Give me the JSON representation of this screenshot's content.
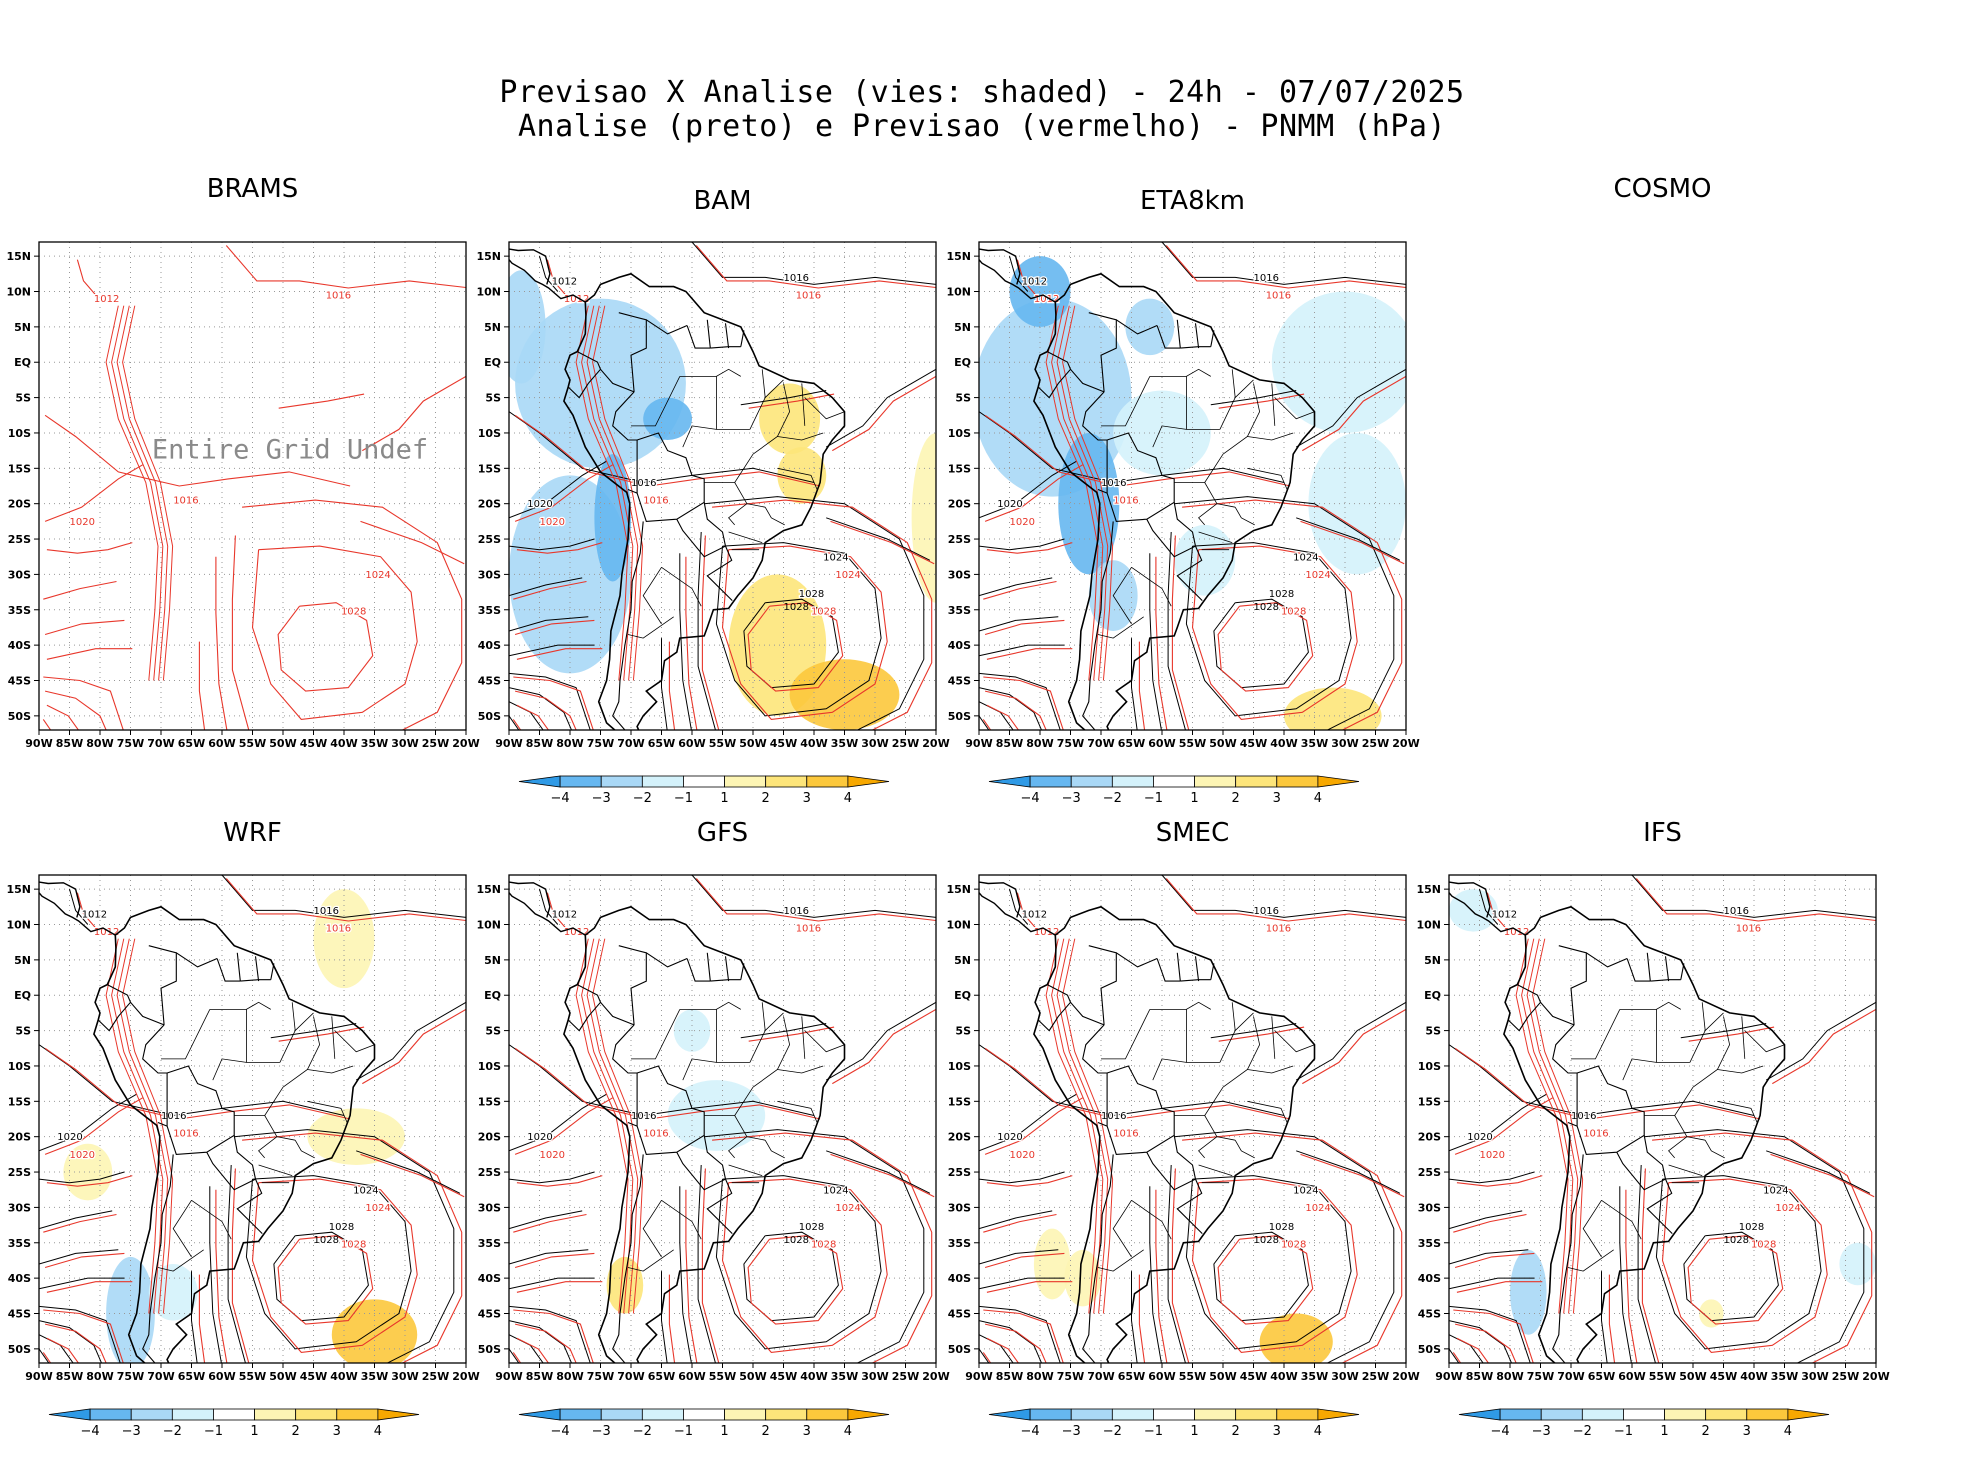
{
  "title": {
    "line1": "Previsao X Analise (vies: shaded) - 24h - 07/07/2025",
    "line2": "Analise (preto) e Previsao (vermelho) - PNMM (hPa)"
  },
  "colors": {
    "analysis_contour": "#000000",
    "forecast_contour": "#e8372b",
    "bias_neg4": "#2f9ae6",
    "bias_neg3": "#66b7f0",
    "bias_neg2": "#a9d8f6",
    "bias_neg1": "#d4f2fb",
    "bias_zero": "#ffffff",
    "bias_pos1": "#fdf5b4",
    "bias_pos2": "#fde57a",
    "bias_pos3": "#fcc83c",
    "bias_pos4": "#f7a800"
  },
  "colorbar": {
    "labels": [
      "-4",
      "-3",
      "-2",
      "-1",
      "1",
      "2",
      "3",
      "4"
    ]
  },
  "axes": {
    "x_ticks": [
      "90W",
      "85W",
      "80W",
      "75W",
      "70W",
      "65W",
      "60W",
      "55W",
      "50W",
      "45W",
      "40W",
      "35W",
      "30W",
      "25W",
      "20W"
    ],
    "y_ticks": [
      "15N",
      "10N",
      "5N",
      "EQ",
      "5S",
      "10S",
      "15S",
      "20S",
      "25S",
      "30S",
      "35S",
      "40S",
      "45S",
      "50S"
    ]
  },
  "panels": [
    {
      "id": "brams",
      "title": "BRAMS",
      "note": "Entire Grid Undef",
      "has_bias": false,
      "has_colorbar": false,
      "has_map": true
    },
    {
      "id": "bam",
      "title": "BAM",
      "has_bias": true,
      "has_colorbar": true,
      "has_map": true
    },
    {
      "id": "eta8km",
      "title": "ETA8km",
      "has_bias": true,
      "has_colorbar": true,
      "has_map": true
    },
    {
      "id": "cosmo",
      "title": "COSMO",
      "has_bias": false,
      "has_colorbar": false,
      "has_map": false
    },
    {
      "id": "wrf",
      "title": "WRF",
      "has_bias": true,
      "has_colorbar": true,
      "has_map": true
    },
    {
      "id": "gfs",
      "title": "GFS",
      "has_bias": true,
      "has_colorbar": true,
      "has_map": true
    },
    {
      "id": "smec",
      "title": "SMEC",
      "has_bias": true,
      "has_colorbar": true,
      "has_map": true
    },
    {
      "id": "ifs",
      "title": "IFS",
      "has_bias": true,
      "has_colorbar": true,
      "has_map": true
    }
  ],
  "chart_data": {
    "type": "heatmap",
    "title": "Previsao X Analise (vies: shaded) - 24h - 07/07/2025",
    "subtitle": "Analise (preto) e Previsao (vermelho) - PNMM (hPa)",
    "variable": "PNMM (hPa)",
    "lead_time": "24h",
    "date": "07/07/2025",
    "xlim": [
      -90,
      -20
    ],
    "ylim": [
      -52,
      17
    ],
    "bias_levels": [
      -4,
      -3,
      -2,
      -1,
      1,
      2,
      3,
      4
    ],
    "isobar_labels": [
      "1012",
      "1016",
      "1020",
      "1024",
      "1028"
    ],
    "high_pressure_center": {
      "lon": -45,
      "lat": -40,
      "value": 1028
    },
    "models": [
      "BRAMS",
      "BAM",
      "ETA8km",
      "COSMO",
      "WRF",
      "GFS",
      "SMEC",
      "IFS"
    ]
  }
}
